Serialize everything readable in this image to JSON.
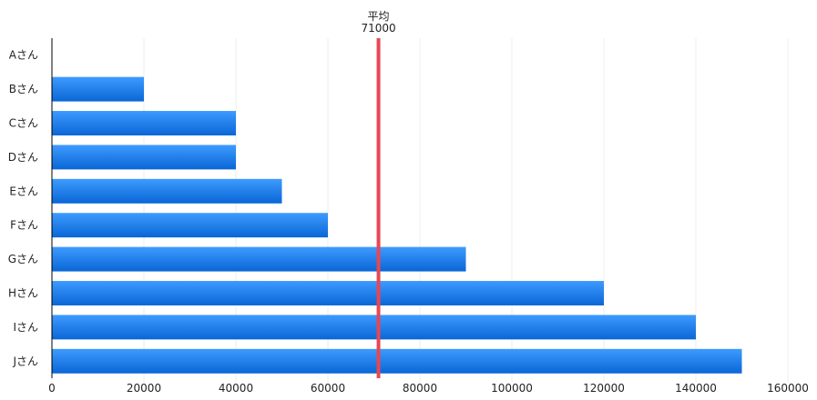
{
  "chart_data": {
    "type": "bar",
    "orientation": "horizontal",
    "categories": [
      "Aさん",
      "Bさん",
      "Cさん",
      "Dさん",
      "Eさん",
      "Fさん",
      "Gさん",
      "Hさん",
      "Iさん",
      "Jさん"
    ],
    "values": [
      0,
      20000,
      40000,
      40000,
      50000,
      60000,
      90000,
      120000,
      140000,
      150000
    ],
    "xlim": [
      0,
      160000
    ],
    "xticks": [
      "0",
      "20000",
      "40000",
      "60000",
      "80000",
      "100000",
      "120000",
      "140000",
      "160000"
    ],
    "grid": true,
    "average": {
      "label": "平均",
      "value_label": "71000",
      "value": 71000
    },
    "colors": {
      "bar_top": "#3d9bff",
      "bar_bottom": "#0a66d6",
      "average_line": "#e84654",
      "grid": "#ececec",
      "axis": "#000000"
    }
  }
}
